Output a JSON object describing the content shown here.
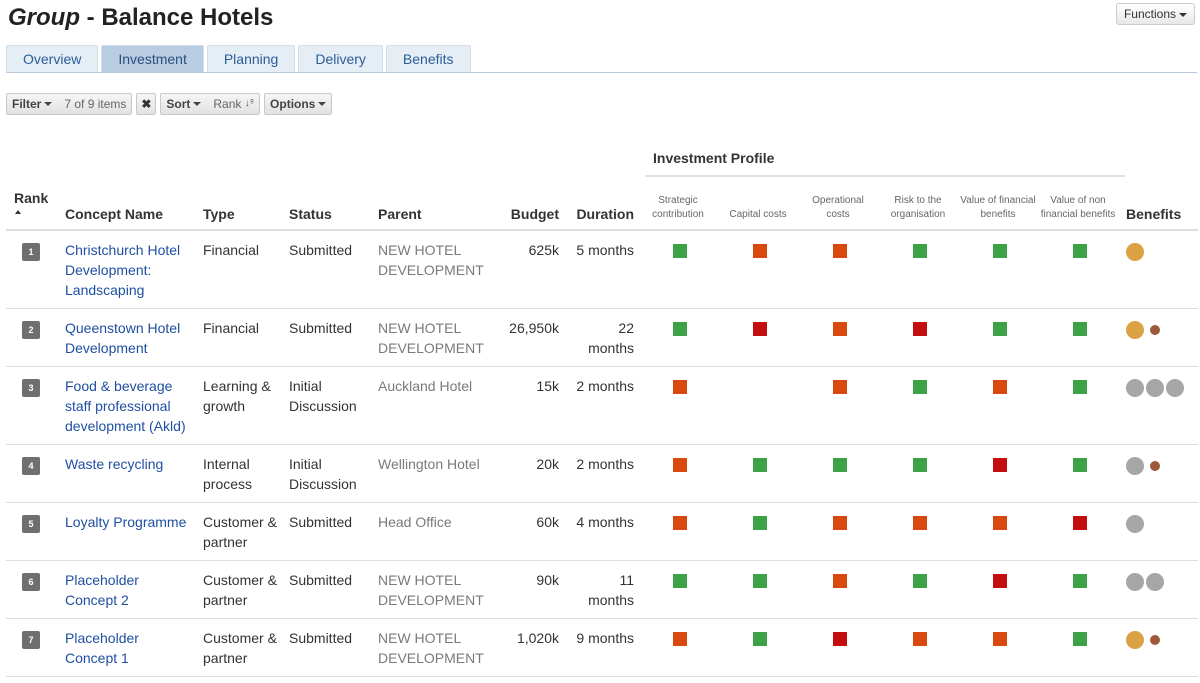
{
  "page": {
    "title_prefix": "Group",
    "title_sep": " - ",
    "title_name": "Balance Hotels",
    "functions_label": "Functions"
  },
  "tabs": [
    {
      "label": "Overview",
      "active": false
    },
    {
      "label": "Investment",
      "active": true
    },
    {
      "label": "Planning",
      "active": false
    },
    {
      "label": "Delivery",
      "active": false
    },
    {
      "label": "Benefits",
      "active": false
    }
  ],
  "toolbar": {
    "filter_label": "Filter",
    "filter_value": "7 of 9 items",
    "clear_icon": "close-icon",
    "clear_glyph": "✖",
    "sort_label": "Sort",
    "sort_value": "Rank",
    "sort_icon": "sort-numeric-asc-icon",
    "sort_glyph": "↓⁹",
    "options_label": "Options"
  },
  "colors": {
    "green": "#3da147",
    "orange": "#d9480f",
    "red": "#c40e0e",
    "gold": "#dba243",
    "brown": "#9c5a3a",
    "grey": "#a6a6a6"
  },
  "table": {
    "group_header": "Investment Profile",
    "columns": {
      "rank": "Rank",
      "concept": "Concept Name",
      "type": "Type",
      "status": "Status",
      "parent": "Parent",
      "budget": "Budget",
      "duration": "Duration",
      "profile": [
        "Strategic contribution",
        "Capital costs",
        "Operational costs",
        "Risk to the organisation",
        "Value of financial benefits",
        "Value of non financial benefits"
      ],
      "benefits": "Benefits"
    },
    "rows": [
      {
        "rank": "1",
        "concept": "Christchurch Hotel Development: Landscaping",
        "type": "Financial",
        "status": "Submitted",
        "parent": "NEW HOTEL DEVELOPMENT",
        "budget": "625k",
        "duration": "5 months",
        "profile": [
          "green",
          "orange",
          "orange",
          "green",
          "green",
          "green"
        ],
        "benefits": [
          {
            "size": "lg",
            "color": "gold"
          }
        ]
      },
      {
        "rank": "2",
        "concept": "Queenstown Hotel Development",
        "type": "Financial",
        "status": "Submitted",
        "parent": "NEW HOTEL DEVELOPMENT",
        "budget": "26,950k",
        "duration": "22 months",
        "profile": [
          "green",
          "red",
          "orange",
          "red",
          "green",
          "green"
        ],
        "benefits": [
          {
            "size": "lg",
            "color": "gold"
          },
          {
            "size": "sm",
            "color": "brown"
          }
        ]
      },
      {
        "rank": "3",
        "concept": "Food & beverage staff professional development (Akld)",
        "type": "Learning & growth",
        "status": "Initial Discussion",
        "parent": "Auckland Hotel",
        "budget": "15k",
        "duration": "2 months",
        "profile": [
          "orange",
          "",
          "orange",
          "green",
          "orange",
          "green"
        ],
        "benefits": [
          {
            "size": "lg",
            "color": "grey"
          },
          {
            "size": "lg",
            "color": "grey"
          },
          {
            "size": "lg",
            "color": "grey"
          }
        ]
      },
      {
        "rank": "4",
        "concept": "Waste recycling",
        "type": "Internal process",
        "status": "Initial Discussion",
        "parent": "Wellington Hotel",
        "budget": "20k",
        "duration": "2 months",
        "profile": [
          "orange",
          "green",
          "green",
          "green",
          "red",
          "green"
        ],
        "benefits": [
          {
            "size": "lg",
            "color": "grey"
          },
          {
            "size": "sm",
            "color": "brown"
          }
        ]
      },
      {
        "rank": "5",
        "concept": "Loyalty Programme",
        "type": "Customer & partner",
        "status": "Submitted",
        "parent": "Head Office",
        "budget": "60k",
        "duration": "4 months",
        "profile": [
          "orange",
          "green",
          "orange",
          "orange",
          "orange",
          "red"
        ],
        "benefits": [
          {
            "size": "lg",
            "color": "grey"
          }
        ]
      },
      {
        "rank": "6",
        "concept": "Placeholder Concept 2",
        "type": "Customer & partner",
        "status": "Submitted",
        "parent": "NEW HOTEL DEVELOPMENT",
        "budget": "90k",
        "duration": "11 months",
        "profile": [
          "green",
          "green",
          "orange",
          "green",
          "red",
          "green"
        ],
        "benefits": [
          {
            "size": "lg",
            "color": "grey"
          },
          {
            "size": "lg",
            "color": "grey"
          }
        ]
      },
      {
        "rank": "7",
        "concept": "Placeholder Concept 1",
        "type": "Customer & partner",
        "status": "Submitted",
        "parent": "NEW HOTEL DEVELOPMENT",
        "budget": "1,020k",
        "duration": "9 months",
        "profile": [
          "orange",
          "green",
          "red",
          "orange",
          "orange",
          "green"
        ],
        "benefits": [
          {
            "size": "lg",
            "color": "gold"
          },
          {
            "size": "sm",
            "color": "brown"
          }
        ]
      }
    ]
  }
}
